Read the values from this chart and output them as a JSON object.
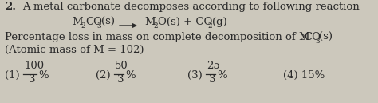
{
  "background_color": "#ccc8bc",
  "text_color": "#2a2a2a",
  "question_number": "2.",
  "line1": "A metal carbonate decomposes according to following reaction",
  "line4": "(Atomic mass of M = 102)",
  "options": [
    {
      "label": "(1)",
      "num": "100",
      "den": "3",
      "suffix": "%"
    },
    {
      "label": "(2)",
      "num": "50",
      "den": "3",
      "suffix": "%"
    },
    {
      "label": "(3)",
      "num": "25",
      "den": "3",
      "suffix": "%"
    },
    {
      "label": "(4)",
      "num": "15%",
      "den": "",
      "suffix": ""
    }
  ],
  "figsize": [
    4.74,
    1.29
  ],
  "dpi": 100,
  "fs": 9.5,
  "fs_sub": 6.5,
  "fs_bold": 9.5
}
